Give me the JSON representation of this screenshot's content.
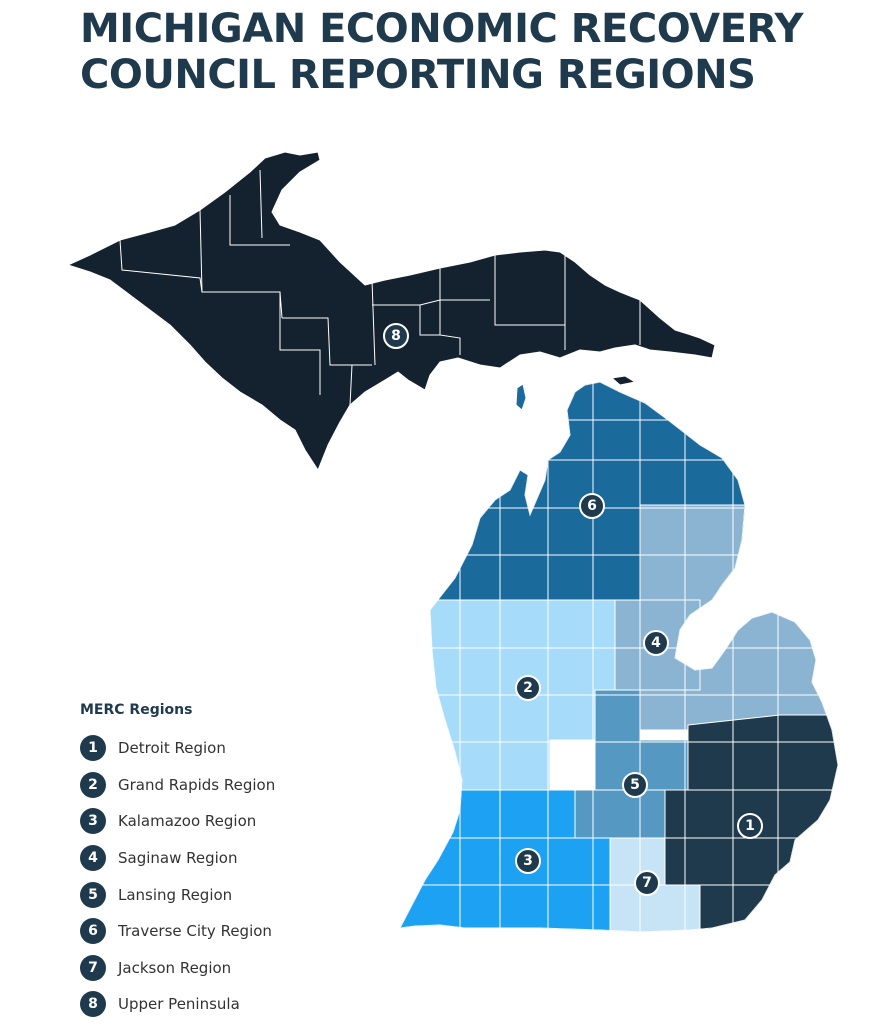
{
  "title": {
    "line1": "MICHIGAN ECONOMIC RECOVERY",
    "line2": "COUNCIL REPORTING REGIONS"
  },
  "legend": {
    "heading": "MERC Regions",
    "items": [
      {
        "num": "1",
        "label": "Detroit Region"
      },
      {
        "num": "2",
        "label": "Grand Rapids Region"
      },
      {
        "num": "3",
        "label": "Kalamazoo Region"
      },
      {
        "num": "4",
        "label": "Saginaw Region"
      },
      {
        "num": "5",
        "label": "Lansing Region"
      },
      {
        "num": "6",
        "label": "Traverse City Region"
      },
      {
        "num": "7",
        "label": "Jackson Region"
      },
      {
        "num": "8",
        "label": "Upper Peninsula"
      }
    ]
  },
  "map": {
    "region_colors": {
      "1": "#1f3a4d",
      "2": "#a6dcfa",
      "3": "#1da1f2",
      "4": "#8ab4d2",
      "5": "#5598c2",
      "6": "#1b6a9c",
      "7": "#c6e4f5",
      "8": "#14222f"
    },
    "marker_labels": [
      "8",
      "6",
      "2",
      "4",
      "5",
      "3",
      "7",
      "1"
    ]
  }
}
